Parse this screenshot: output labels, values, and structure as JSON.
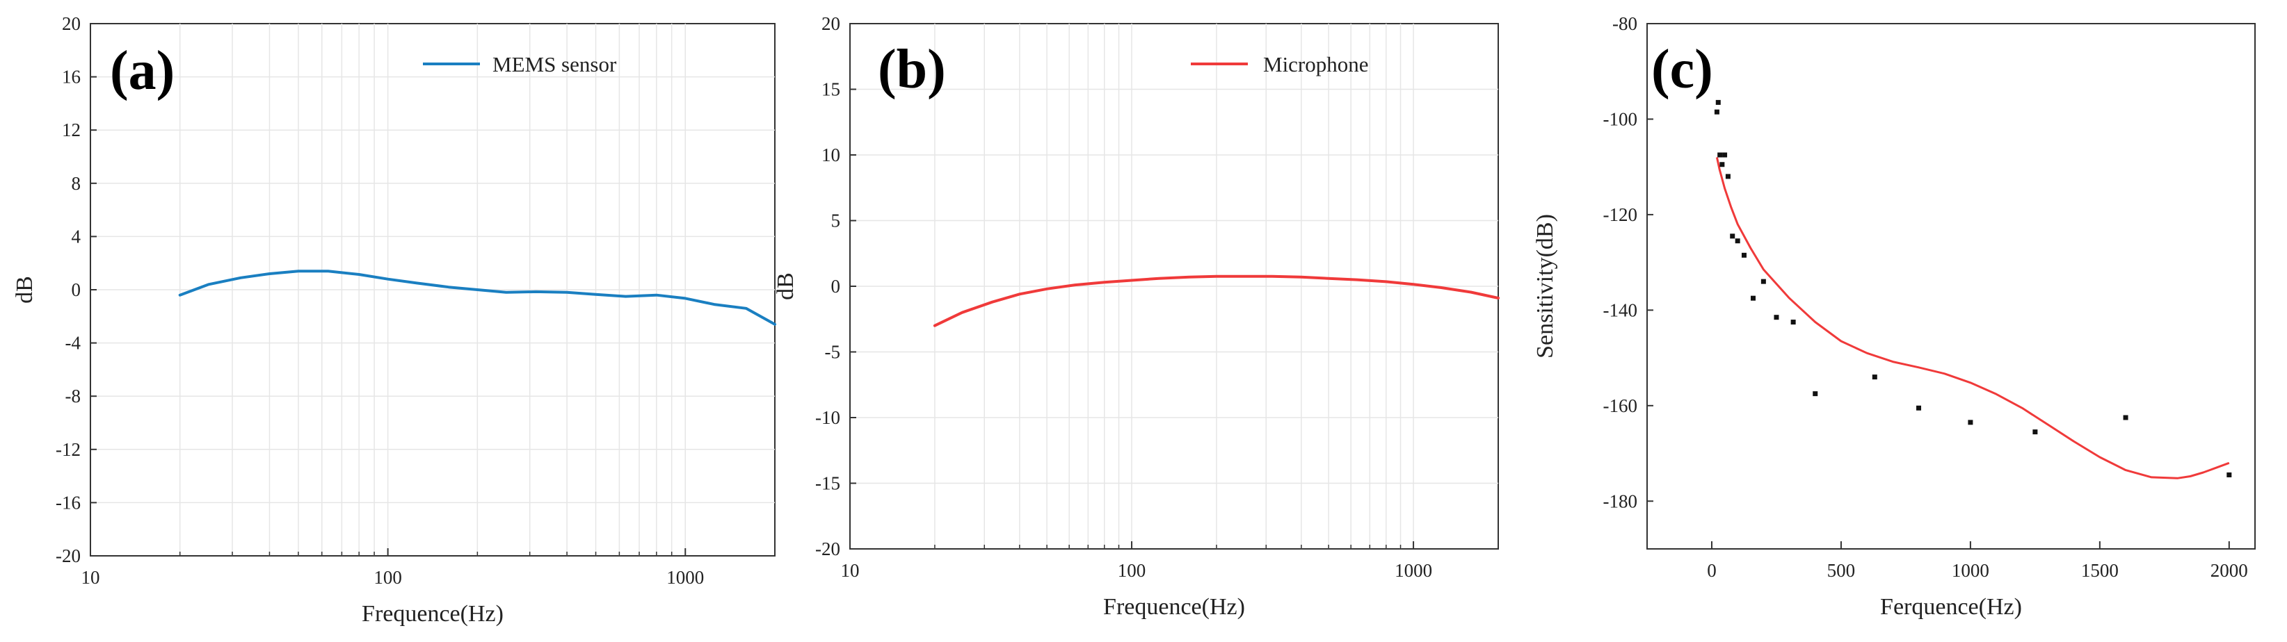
{
  "chart_data": [
    {
      "panel_label": "(a)",
      "type": "line",
      "xscale": "log",
      "xlabel": "Frequence(Hz)",
      "ylabel": "dB",
      "xlim": [
        10,
        2000
      ],
      "ylim": [
        -20,
        20
      ],
      "xticks": [
        10,
        100,
        1000
      ],
      "xtick_labels": [
        "10",
        "100",
        "1000"
      ],
      "yticks": [
        -20,
        -16,
        -12,
        -8,
        -4,
        0,
        4,
        8,
        12,
        16,
        20
      ],
      "ytick_labels": [
        "-20",
        "-16",
        "-12",
        "-8",
        "-4",
        "0",
        "4",
        "8",
        "12",
        "16",
        "20"
      ],
      "grid": true,
      "legend_position": "top-right",
      "colors": {
        "line": "#1a7fc1"
      },
      "series": [
        {
          "name": "MEMS sensor",
          "x": [
            20,
            25,
            32,
            40,
            50,
            63,
            80,
            100,
            125,
            160,
            200,
            250,
            315,
            400,
            500,
            630,
            800,
            1000,
            1250,
            1600,
            2000
          ],
          "values": [
            -0.4,
            0.4,
            0.9,
            1.2,
            1.4,
            1.4,
            1.15,
            0.8,
            0.5,
            0.2,
            0.0,
            -0.2,
            -0.15,
            -0.2,
            -0.35,
            -0.5,
            -0.4,
            -0.65,
            -1.1,
            -1.4,
            -2.6
          ]
        }
      ]
    },
    {
      "panel_label": "(b)",
      "type": "line",
      "xscale": "log",
      "xlabel": "Frequence(Hz)",
      "ylabel": "dB",
      "xlim": [
        10,
        2000
      ],
      "ylim": [
        -20,
        20
      ],
      "xticks": [
        10,
        100,
        1000
      ],
      "xtick_labels": [
        "10",
        "100",
        "1000"
      ],
      "yticks": [
        -20,
        -15,
        -10,
        -5,
        0,
        5,
        10,
        15,
        20
      ],
      "ytick_labels": [
        "-20",
        "-15",
        "-10",
        "-5",
        "0",
        "5",
        "10",
        "15",
        "20"
      ],
      "grid": true,
      "legend_position": "top-right",
      "colors": {
        "line": "#f03a3a"
      },
      "series": [
        {
          "name": "Microphone",
          "x": [
            20,
            25,
            32,
            40,
            50,
            63,
            80,
            100,
            125,
            160,
            200,
            250,
            315,
            400,
            500,
            630,
            800,
            1000,
            1250,
            1600,
            2000
          ],
          "values": [
            -3.0,
            -2.0,
            -1.2,
            -0.6,
            -0.2,
            0.1,
            0.3,
            0.45,
            0.6,
            0.7,
            0.75,
            0.75,
            0.75,
            0.7,
            0.6,
            0.5,
            0.35,
            0.15,
            -0.1,
            -0.45,
            -0.9
          ]
        }
      ]
    },
    {
      "panel_label": "(c)",
      "type": "scatter",
      "xlabel": "Ferquence(Hz)",
      "ylabel": "Sensitivity(dB)",
      "xlim": [
        -250,
        2100
      ],
      "ylim": [
        -190,
        -80
      ],
      "xticks": [
        0,
        500,
        1000,
        1500,
        2000
      ],
      "xtick_labels": [
        "0",
        "500",
        "1000",
        "1500",
        "2000"
      ],
      "yticks": [
        -180,
        -160,
        -140,
        -120,
        -100,
        -80
      ],
      "ytick_labels": [
        "-180",
        "-160",
        "-140",
        "-120",
        "-100",
        "-80"
      ],
      "grid": false,
      "colors": {
        "points": "#111111",
        "fit": "#f03a3a"
      },
      "points": {
        "x": [
          20,
          25,
          31.5,
          40,
          50,
          63,
          80,
          100,
          125,
          160,
          200,
          250,
          315,
          400,
          630,
          800,
          1000,
          1250,
          1600,
          2000
        ],
        "y": [
          -98.5,
          -96.5,
          -107.5,
          -109.5,
          -107.5,
          -112,
          -124.5,
          -125.5,
          -128.5,
          -137.5,
          -134,
          -141.5,
          -142.5,
          -157.5,
          -154,
          -160.5,
          -163.5,
          -165.5,
          -162.5,
          -174.5
        ]
      },
      "fit": {
        "x": [
          20,
          30,
          50,
          75,
          100,
          150,
          200,
          300,
          400,
          500,
          600,
          700,
          800,
          900,
          1000,
          1100,
          1200,
          1300,
          1400,
          1500,
          1600,
          1700,
          1800,
          1850,
          1900,
          1950,
          2000
        ],
        "y": [
          -108,
          -110.5,
          -114.5,
          -118.5,
          -122,
          -127,
          -131.5,
          -137.5,
          -142.5,
          -146.5,
          -149,
          -150.8,
          -152,
          -153.3,
          -155.2,
          -157.6,
          -160.5,
          -164,
          -167.5,
          -170.8,
          -173.5,
          -175,
          -175.2,
          -174.8,
          -174,
          -173,
          -172
        ]
      }
    }
  ]
}
